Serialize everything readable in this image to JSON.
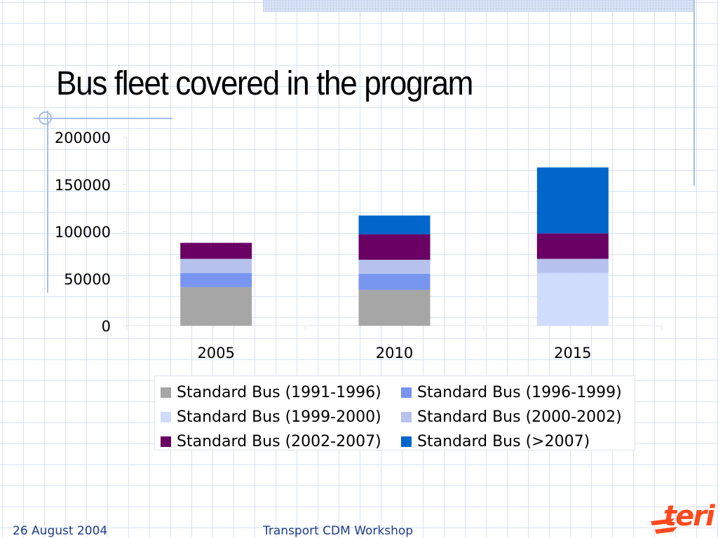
{
  "slide": {
    "title": "Bus fleet covered in the program",
    "footer_date": "26 August 2004",
    "footer_event": "Transport CDM Workshop",
    "logo_text": "teri"
  },
  "chart_data": {
    "type": "bar",
    "stacked": true,
    "categories": [
      "2005",
      "2010",
      "2015"
    ],
    "series": [
      {
        "name": "Standard Bus (1991-1996)",
        "color": "#a6a6a6",
        "values": [
          41000,
          38000,
          0
        ]
      },
      {
        "name": "Standard Bus (1996-1999)",
        "color": "#7895f0",
        "values": [
          15000,
          17000,
          0
        ]
      },
      {
        "name": "Standard Bus (1999-2000)",
        "color": "#d0dcfb",
        "values": [
          0,
          0,
          56000
        ]
      },
      {
        "name": "Standard Bus (2000-2002)",
        "color": "#b7c2ee",
        "values": [
          15000,
          15000,
          15000
        ]
      },
      {
        "name": "Standard Bus (2002-2007)",
        "color": "#6a0064",
        "values": [
          17000,
          27000,
          27000
        ]
      },
      {
        "name": "Standard Bus (>2007)",
        "color": "#0066cc",
        "values": [
          0,
          20000,
          70000
        ]
      }
    ],
    "yticks": [
      "0",
      "50000",
      "100000",
      "150000",
      "200000"
    ],
    "ylim": [
      0,
      200000
    ],
    "title": "",
    "xlabel": "",
    "ylabel": "",
    "grid": false,
    "legend_position": "bottom"
  }
}
